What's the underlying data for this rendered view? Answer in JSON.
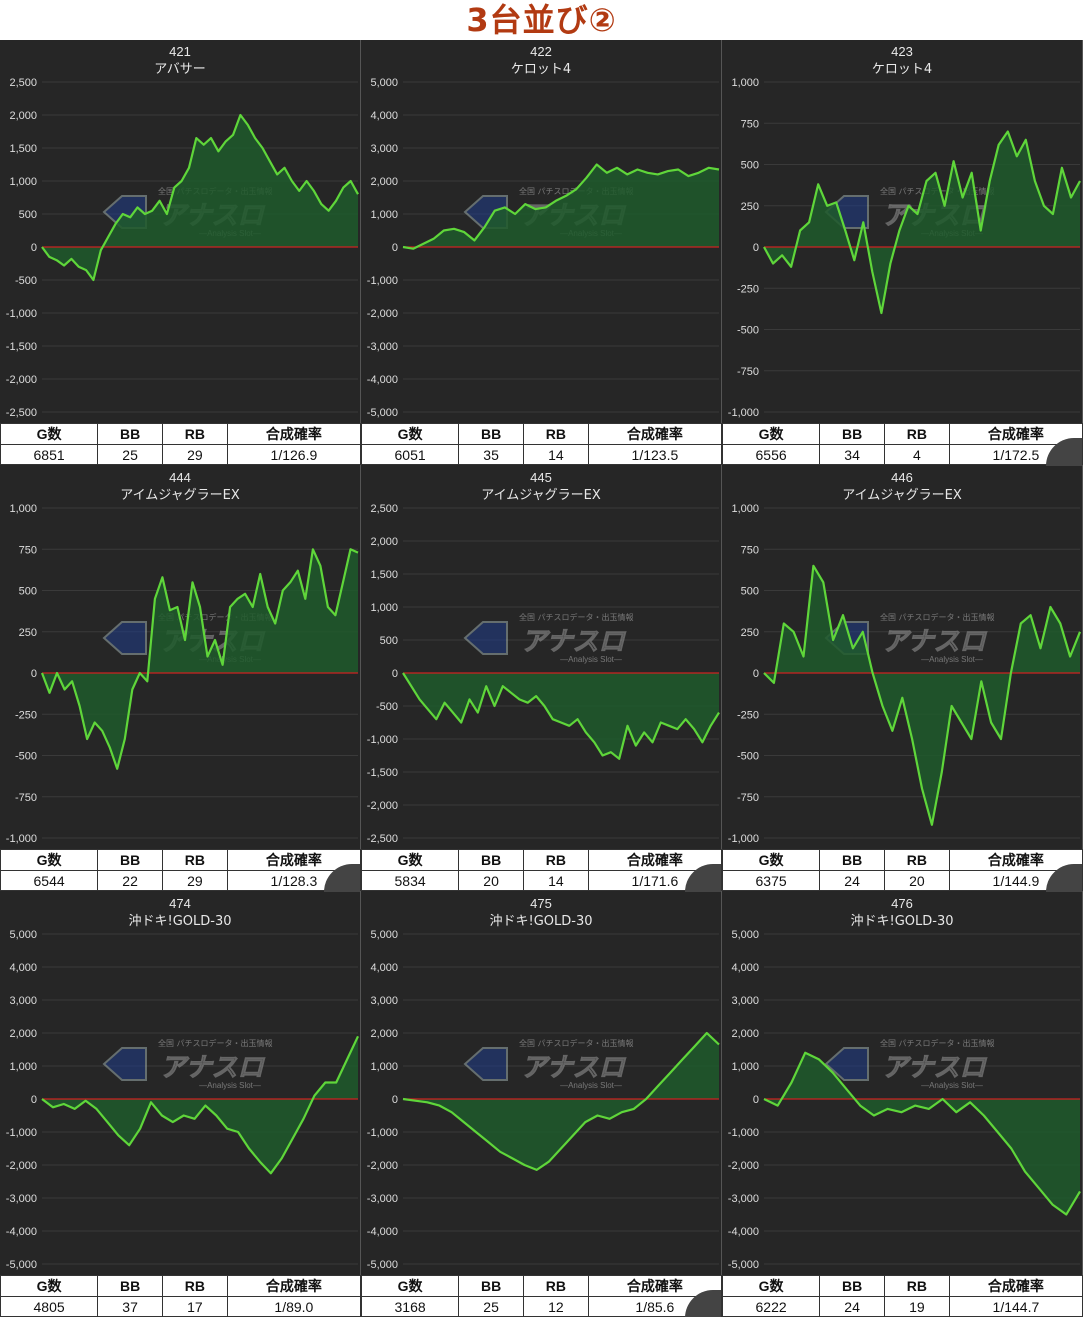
{
  "page": {
    "title": "3台並び②"
  },
  "stat_headers": [
    "G数",
    "BB",
    "RB",
    "合成確率"
  ],
  "colors": {
    "line": "#5fd63a",
    "fill": "#1f5a2c",
    "zero": "#cc2222",
    "panel": "#262626",
    "grid": "#3a3a3a",
    "title": "#b23a12"
  },
  "watermark": {
    "top": "全国 パチスロデータ・出玉情報",
    "main": "アナスロ",
    "sub": "—Analysis Slot—"
  },
  "chart_data": [
    {
      "type": "area",
      "machine_no": "421",
      "model": "アバサー",
      "ylim": [
        -2500,
        2500
      ],
      "yticks": [
        "2,500",
        "2,000",
        "1,500",
        "1,000",
        "500",
        "0",
        "-500",
        "-1,000",
        "-1,500",
        "-2,000",
        "-2,500"
      ],
      "values": [
        0,
        -150,
        -200,
        -280,
        -180,
        -300,
        -350,
        -500,
        -50,
        150,
        350,
        500,
        450,
        600,
        500,
        550,
        700,
        500,
        900,
        1000,
        1200,
        1650,
        1550,
        1650,
        1450,
        1600,
        1700,
        2000,
        1850,
        1650,
        1500,
        1300,
        1100,
        1200,
        1000,
        850,
        1000,
        850,
        650,
        550,
        700,
        900,
        1000,
        800
      ],
      "stats": {
        "games": "6851",
        "bb": "25",
        "rb": "29",
        "rate": "1/126.9"
      }
    },
    {
      "type": "area",
      "machine_no": "422",
      "model": "ケロット4",
      "ylim": [
        -5000,
        5000
      ],
      "yticks": [
        "5,000",
        "4,000",
        "3,000",
        "2,000",
        "1,000",
        "0",
        "-1,000",
        "-2,000",
        "-3,000",
        "-4,000",
        "-5,000"
      ],
      "values": [
        0,
        -50,
        100,
        250,
        500,
        550,
        450,
        200,
        600,
        1100,
        1200,
        1000,
        1300,
        1150,
        1200,
        1400,
        1550,
        1750,
        2100,
        2500,
        2250,
        2400,
        2200,
        2350,
        2250,
        2200,
        2300,
        2350,
        2150,
        2250,
        2400,
        2350
      ],
      "stats": {
        "games": "6051",
        "bb": "35",
        "rb": "14",
        "rate": "1/123.5"
      }
    },
    {
      "type": "area",
      "machine_no": "423",
      "model": "ケロット4",
      "ylim": [
        -1000,
        1000
      ],
      "yticks": [
        "1,000",
        "750",
        "500",
        "250",
        "0",
        "-250",
        "-500",
        "-750",
        "-1,000"
      ],
      "values": [
        0,
        -100,
        -50,
        -120,
        100,
        150,
        380,
        250,
        270,
        100,
        -80,
        150,
        -150,
        -400,
        -100,
        100,
        250,
        200,
        400,
        450,
        250,
        520,
        300,
        450,
        100,
        400,
        620,
        700,
        550,
        650,
        400,
        250,
        200,
        480,
        300,
        400
      ],
      "stats": {
        "games": "6556",
        "bb": "34",
        "rb": "4",
        "rate": "1/172.5"
      }
    },
    {
      "type": "area",
      "machine_no": "444",
      "model": "アイムジャグラーEX",
      "ylim": [
        -1000,
        1000
      ],
      "yticks": [
        "1,000",
        "750",
        "500",
        "250",
        "0",
        "-250",
        "-500",
        "-750",
        "-1,000"
      ],
      "values": [
        0,
        -120,
        0,
        -100,
        -50,
        -200,
        -400,
        -300,
        -350,
        -450,
        -580,
        -400,
        -100,
        0,
        -50,
        450,
        580,
        380,
        400,
        200,
        550,
        400,
        100,
        200,
        50,
        400,
        450,
        480,
        400,
        600,
        400,
        300,
        500,
        550,
        620,
        450,
        750,
        650,
        400,
        350,
        550,
        750,
        730
      ],
      "stats": {
        "games": "6544",
        "bb": "22",
        "rb": "29",
        "rate": "1/128.3"
      }
    },
    {
      "type": "area",
      "machine_no": "445",
      "model": "アイムジャグラーEX",
      "ylim": [
        -2500,
        2500
      ],
      "yticks": [
        "2,500",
        "2,000",
        "1,500",
        "1,000",
        "500",
        "0",
        "-500",
        "-1,000",
        "-1,500",
        "-2,000",
        "-2,500"
      ],
      "values": [
        0,
        -200,
        -400,
        -550,
        -700,
        -450,
        -600,
        -750,
        -400,
        -600,
        -200,
        -500,
        -200,
        -300,
        -400,
        -450,
        -350,
        -500,
        -700,
        -750,
        -800,
        -700,
        -900,
        -1050,
        -1250,
        -1200,
        -1300,
        -800,
        -1100,
        -900,
        -1050,
        -750,
        -800,
        -850,
        -700,
        -850,
        -1050,
        -800,
        -600
      ],
      "stats": {
        "games": "5834",
        "bb": "20",
        "rb": "14",
        "rate": "1/171.6"
      }
    },
    {
      "type": "area",
      "machine_no": "446",
      "model": "アイムジャグラーEX",
      "ylim": [
        -1000,
        1000
      ],
      "yticks": [
        "1,000",
        "750",
        "500",
        "250",
        "0",
        "-250",
        "-500",
        "-750",
        "-1,000"
      ],
      "values": [
        0,
        -60,
        300,
        250,
        100,
        650,
        550,
        200,
        350,
        150,
        250,
        0,
        -200,
        -350,
        -150,
        -400,
        -700,
        -920,
        -600,
        -200,
        -300,
        -400,
        -50,
        -300,
        -400,
        0,
        300,
        350,
        150,
        400,
        300,
        100,
        250
      ],
      "stats": {
        "games": "6375",
        "bb": "24",
        "rb": "20",
        "rate": "1/144.9"
      }
    },
    {
      "type": "area",
      "machine_no": "474",
      "model": "沖ドキ!GOLD-30",
      "ylim": [
        -5000,
        5000
      ],
      "yticks": [
        "5,000",
        "4,000",
        "3,000",
        "2,000",
        "1,000",
        "0",
        "-1,000",
        "-2,000",
        "-3,000",
        "-4,000",
        "-5,000"
      ],
      "values": [
        0,
        -250,
        -150,
        -300,
        -50,
        -300,
        -700,
        -1100,
        -1400,
        -900,
        -100,
        -500,
        -700,
        -500,
        -600,
        -200,
        -500,
        -900,
        -1000,
        -1500,
        -1900,
        -2250,
        -1800,
        -1200,
        -600,
        100,
        500,
        500,
        1200,
        1900
      ],
      "stats": {
        "games": "4805",
        "bb": "37",
        "rb": "17",
        "rate": "1/89.0"
      }
    },
    {
      "type": "area",
      "machine_no": "475",
      "model": "沖ドキ!GOLD-30",
      "ylim": [
        -5000,
        5000
      ],
      "yticks": [
        "5,000",
        "4,000",
        "3,000",
        "2,000",
        "1,000",
        "0",
        "-1,000",
        "-2,000",
        "-3,000",
        "-4,000",
        "-5,000"
      ],
      "values": [
        0,
        -50,
        -100,
        -200,
        -400,
        -700,
        -1000,
        -1300,
        -1600,
        -1800,
        -2000,
        -2150,
        -1900,
        -1500,
        -1100,
        -700,
        -500,
        -600,
        -400,
        -300,
        0,
        400,
        800,
        1200,
        1600,
        2000,
        1650
      ],
      "stats": {
        "games": "3168",
        "bb": "25",
        "rb": "12",
        "rate": "1/85.6"
      }
    },
    {
      "type": "area",
      "machine_no": "476",
      "model": "沖ドキ!GOLD-30",
      "ylim": [
        -5000,
        5000
      ],
      "yticks": [
        "5,000",
        "4,000",
        "3,000",
        "2,000",
        "1,000",
        "0",
        "-1,000",
        "-2,000",
        "-3,000",
        "-4,000",
        "-5,000"
      ],
      "values": [
        0,
        -200,
        500,
        1400,
        1200,
        800,
        300,
        -200,
        -500,
        -300,
        -400,
        -200,
        -300,
        0,
        -400,
        -100,
        -500,
        -1000,
        -1500,
        -2200,
        -2700,
        -3200,
        -3500,
        -2800
      ],
      "stats": {
        "games": "6222",
        "bb": "24",
        "rb": "19",
        "rate": "1/144.7"
      }
    }
  ]
}
